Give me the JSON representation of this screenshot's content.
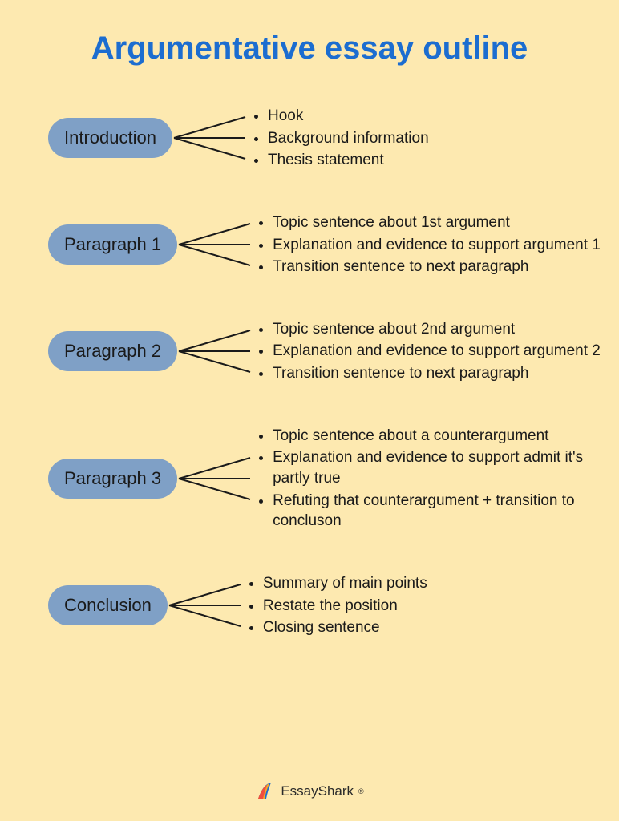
{
  "title": "Argumentative essay outline",
  "title_color": "#1c6dd0",
  "background_color": "#fde9b0",
  "node_fill": "#7fa0c6",
  "node_text_color": "#1a1a1a",
  "bullet_text_color": "#1a1a1a",
  "line_color": "#1a1a1a",
  "line_width": 2,
  "title_fontsize": 40,
  "node_fontsize": 22,
  "bullet_fontsize": 19,
  "sections": [
    {
      "label": "Introduction",
      "items": [
        "Hook",
        "Background information",
        "Thesis statement"
      ]
    },
    {
      "label": "Paragraph 1",
      "items": [
        "Topic sentence about 1st argument",
        "Explanation and evidence to support argument 1",
        "Transition sentence to next paragraph"
      ]
    },
    {
      "label": "Paragraph 2",
      "items": [
        "Topic sentence about 2nd argument",
        "Explanation and evidence to support argument 2",
        "Transition sentence to next paragraph"
      ]
    },
    {
      "label": "Paragraph 3",
      "items": [
        "Topic sentence about a counterargument",
        "Explanation and evidence to support admit it's partly true",
        "Refuting that counterargument + transition to concluson"
      ]
    },
    {
      "label": "Conclusion",
      "items": [
        "Summary of main points",
        "Restate the position",
        "Closing sentence"
      ]
    }
  ],
  "footer": {
    "brand": "EssayShark",
    "registered": "®",
    "fin_colors": [
      "#f04e3e",
      "#f9a825",
      "#1c6dd0"
    ]
  }
}
